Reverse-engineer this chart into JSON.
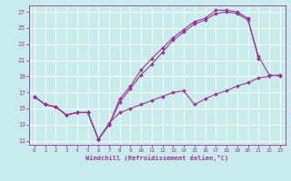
{
  "bg_color": "#c8ecec",
  "grid_color": "#ffffff",
  "line_color": "#993399",
  "xlabel": "Windchill (Refroidissement éolien,°C)",
  "xlim": [
    -0.5,
    23.5
  ],
  "ylim": [
    10.5,
    27.8
  ],
  "xticks": [
    0,
    1,
    2,
    3,
    4,
    5,
    6,
    7,
    8,
    9,
    10,
    11,
    12,
    13,
    14,
    15,
    16,
    17,
    18,
    19,
    20,
    21,
    22,
    23
  ],
  "yticks": [
    11,
    13,
    15,
    17,
    19,
    21,
    23,
    25,
    27
  ],
  "common_x": [
    0,
    1,
    2,
    3,
    4,
    5,
    6
  ],
  "common_y": [
    16.5,
    15.5,
    15.2,
    14.2,
    14.5,
    14.5,
    11.2
  ],
  "s1_x": [
    6,
    7,
    8,
    9,
    10,
    11,
    12,
    13,
    14,
    15,
    16,
    17,
    18,
    19,
    20,
    21
  ],
  "s1_y": [
    11.2,
    13.0,
    16.2,
    17.8,
    19.8,
    21.2,
    22.5,
    23.8,
    24.8,
    25.8,
    26.2,
    27.2,
    27.2,
    27.0,
    26.2,
    21.2
  ],
  "s2_x": [
    6,
    7,
    8,
    9,
    10,
    11,
    12,
    13,
    14,
    15,
    16,
    17,
    18,
    19,
    20,
    21,
    22,
    23
  ],
  "s2_y": [
    11.2,
    13.0,
    15.8,
    17.5,
    19.2,
    20.5,
    22.0,
    23.5,
    24.5,
    25.5,
    26.0,
    26.8,
    27.0,
    26.8,
    26.0,
    21.5,
    19.2,
    19.0
  ],
  "s3_x": [
    6,
    7,
    8,
    9,
    10,
    11,
    12,
    13,
    14,
    15,
    16,
    17,
    18,
    19,
    20,
    21,
    22,
    23
  ],
  "s3_y": [
    11.2,
    13.2,
    14.5,
    15.0,
    15.5,
    16.0,
    16.5,
    17.0,
    17.2,
    15.5,
    16.2,
    16.8,
    17.2,
    17.8,
    18.2,
    18.8,
    19.0,
    19.2
  ]
}
